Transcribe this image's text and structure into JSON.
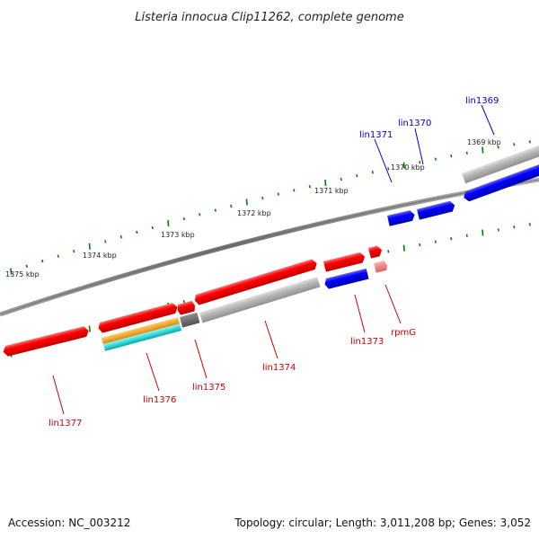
{
  "title": "Listeria innocua Clip11262, complete genome",
  "footer": {
    "accession": "Accession: NC_003212",
    "summary": "Topology: circular; Length: 3,011,208 bp; Genes: 3,052"
  },
  "colors": {
    "forward_cds": "#ff0000",
    "reverse_cds": "#0000ff",
    "rna_gene": "#ff8080",
    "orange_feature": "#ff9900",
    "cyan_feature": "#00cccc",
    "backbone": "#808080",
    "gray_feature": "#b0b0b0",
    "tick": "#008000",
    "forward_label": "#cc0000",
    "reverse_label": "#0000cc"
  },
  "kbp_labels": [
    "1369 kbp",
    "1370 kbp",
    "1371 kbp",
    "1372 kbp",
    "1373 kbp",
    "1374 kbp",
    "1375 kbp"
  ],
  "gene_labels": {
    "lin1369": "lin1369",
    "lin1370": "lin1370",
    "lin1371": "lin1371",
    "lin1373": "lin1373",
    "rpmG": "rpmG",
    "lin1374": "lin1374",
    "lin1375": "lin1375",
    "lin1376": "lin1376",
    "lin1377": "lin1377"
  }
}
